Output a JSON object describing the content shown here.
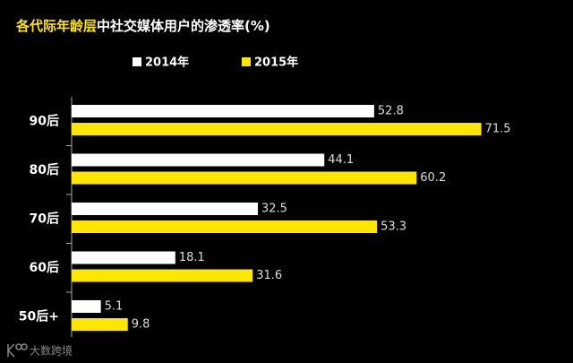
{
  "chart_data": {
    "type": "bar",
    "orientation": "horizontal",
    "title_highlight": "各代际年龄层",
    "title": "中社交媒体用户的渗透率(%)",
    "categories": [
      "90后",
      "80后",
      "70后",
      "60后",
      "50后+"
    ],
    "series": [
      {
        "name": "2014年",
        "color": "#ffffff",
        "values": [
          52.8,
          44.1,
          32.5,
          18.1,
          5.1
        ]
      },
      {
        "name": "2015年",
        "color": "#ffe600",
        "values": [
          71.5,
          60.2,
          53.3,
          31.6,
          9.8
        ]
      }
    ],
    "legend": "top",
    "watermark": "大数跨境"
  }
}
